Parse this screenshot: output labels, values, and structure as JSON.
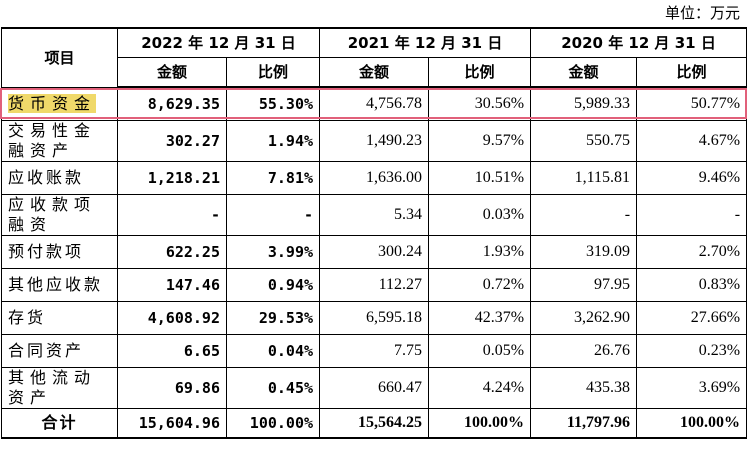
{
  "unit_label": "单位：万元",
  "header": {
    "item": "项目",
    "periods": [
      "2022 年 12 月 31 日",
      "2021 年 12 月 31 日",
      "2020 年 12 月 31 日"
    ],
    "amount": "金额",
    "ratio": "比例"
  },
  "rows": [
    {
      "name": "货币资金",
      "v": [
        "8,629.35",
        "55.30%",
        "4,756.78",
        "30.56%",
        "5,989.33",
        "50.77%"
      ]
    },
    {
      "name": "交易性金融资产",
      "v": [
        "302.27",
        "1.94%",
        "1,490.23",
        "9.57%",
        "550.75",
        "4.67%"
      ]
    },
    {
      "name": "应收账款",
      "v": [
        "1,218.21",
        "7.81%",
        "1,636.00",
        "10.51%",
        "1,115.81",
        "9.46%"
      ]
    },
    {
      "name": "应收款项融资",
      "v": [
        "-",
        "-",
        "5.34",
        "0.03%",
        "-",
        "-"
      ]
    },
    {
      "name": "预付款项",
      "v": [
        "622.25",
        "3.99%",
        "300.24",
        "1.93%",
        "319.09",
        "2.70%"
      ]
    },
    {
      "name": "其他应收款",
      "v": [
        "147.46",
        "0.94%",
        "112.27",
        "0.72%",
        "97.95",
        "0.83%"
      ]
    },
    {
      "name": "存货",
      "v": [
        "4,608.92",
        "29.53%",
        "6,595.18",
        "42.37%",
        "3,262.90",
        "27.66%"
      ]
    },
    {
      "name": "合同资产",
      "v": [
        "6.65",
        "0.04%",
        "7.75",
        "0.05%",
        "26.76",
        "0.23%"
      ]
    },
    {
      "name": "其他流动资产",
      "v": [
        "69.86",
        "0.45%",
        "660.47",
        "4.24%",
        "435.38",
        "3.69%"
      ]
    }
  ],
  "total": {
    "name": "合计",
    "v": [
      "15,604.96",
      "100.00%",
      "15,564.25",
      "100.00%",
      "11,797.96",
      "100.00%"
    ]
  },
  "colors": {
    "highlight": "#f0d96a",
    "row_box": "#e1607a"
  }
}
